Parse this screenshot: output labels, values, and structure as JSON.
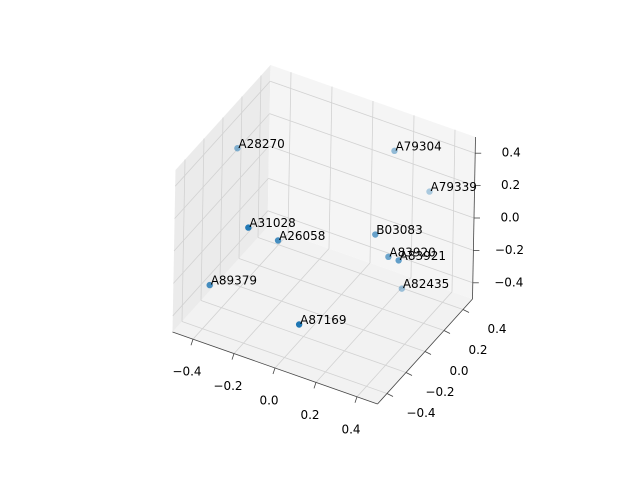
{
  "chart_data": {
    "type": "scatter3d",
    "color": "#1f77b4",
    "labels": [
      "A28270",
      "A79304",
      "A79339",
      "A31028",
      "A26058",
      "B03083",
      "A83920",
      "A83921",
      "A89379",
      "A82435",
      "A87169"
    ],
    "x": [
      -0.45,
      0.14,
      0.3,
      -0.25,
      -0.15,
      0.19,
      0.26,
      0.31,
      -0.36,
      0.31,
      0.05
    ],
    "y": [
      0.05,
      0.43,
      0.46,
      -0.26,
      -0.16,
      0.13,
      0.12,
      0.12,
      -0.42,
      0.16,
      -0.36
    ],
    "z": [
      0.3,
      0.3,
      0.1,
      0.1,
      0,
      0,
      -0.1,
      -0.1,
      -0.2,
      -0.3,
      -0.3
    ],
    "xlim": [
      -0.5,
      0.5
    ],
    "ylim": [
      -0.5,
      0.5
    ],
    "zlim": [
      -0.5,
      0.5
    ],
    "xticks": [
      {
        "value": -0.4,
        "label": "−0.4"
      },
      {
        "value": -0.2,
        "label": "−0.2"
      },
      {
        "value": 0,
        "label": "0.0"
      },
      0.2,
      0.4
    ],
    "yticks": [
      {
        "value": -0.4,
        "label": "−0.4"
      },
      {
        "value": -0.2,
        "label": "−0.2"
      },
      {
        "value": 0,
        "label": "0.0"
      },
      0.2,
      0.4
    ],
    "zticks": [
      {
        "value": -0.4,
        "label": "−0.4"
      },
      {
        "value": -0.2,
        "label": "−0.2"
      },
      {
        "value": 0,
        "label": "0.0"
      },
      0.2,
      0.4
    ],
    "grid": true
  }
}
